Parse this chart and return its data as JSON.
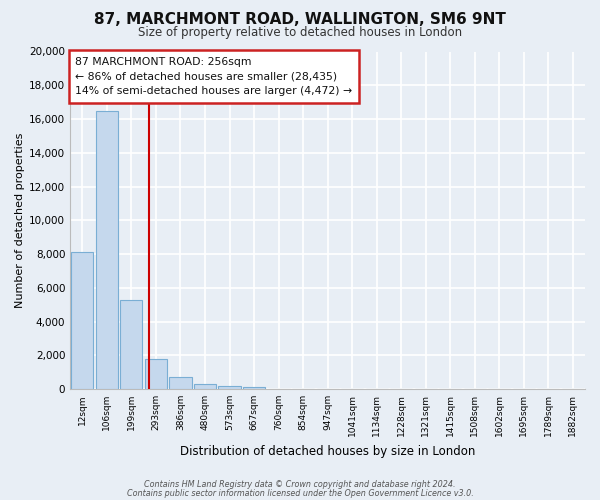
{
  "title": "87, MARCHMONT ROAD, WALLINGTON, SM6 9NT",
  "subtitle": "Size of property relative to detached houses in London",
  "xlabel": "Distribution of detached houses by size in London",
  "ylabel": "Number of detached properties",
  "bin_labels": [
    "12sqm",
    "106sqm",
    "199sqm",
    "293sqm",
    "386sqm",
    "480sqm",
    "573sqm",
    "667sqm",
    "760sqm",
    "854sqm",
    "947sqm",
    "1041sqm",
    "1134sqm",
    "1228sqm",
    "1321sqm",
    "1415sqm",
    "1508sqm",
    "1602sqm",
    "1695sqm",
    "1789sqm",
    "1882sqm"
  ],
  "bar_values": [
    8100,
    16500,
    5300,
    1800,
    750,
    300,
    200,
    100,
    0,
    0,
    0,
    0,
    0,
    0,
    0,
    0,
    0,
    0,
    0,
    0,
    0
  ],
  "bar_color": "#c5d8ed",
  "bar_edge_color": "#7aaed4",
  "red_line_x": 2.72,
  "ylim": [
    0,
    20000
  ],
  "yticks": [
    0,
    2000,
    4000,
    6000,
    8000,
    10000,
    12000,
    14000,
    16000,
    18000,
    20000
  ],
  "annotation_line1": "87 MARCHMONT ROAD: 256sqm",
  "annotation_line2": "← 86% of detached houses are smaller (28,435)",
  "annotation_line3": "14% of semi-detached houses are larger (4,472) →",
  "annotation_box_facecolor": "#ffffff",
  "annotation_box_edgecolor": "#cc2222",
  "footer_line1": "Contains HM Land Registry data © Crown copyright and database right 2024.",
  "footer_line2": "Contains public sector information licensed under the Open Government Licence v3.0.",
  "background_color": "#e8eef5",
  "grid_color": "#ffffff"
}
